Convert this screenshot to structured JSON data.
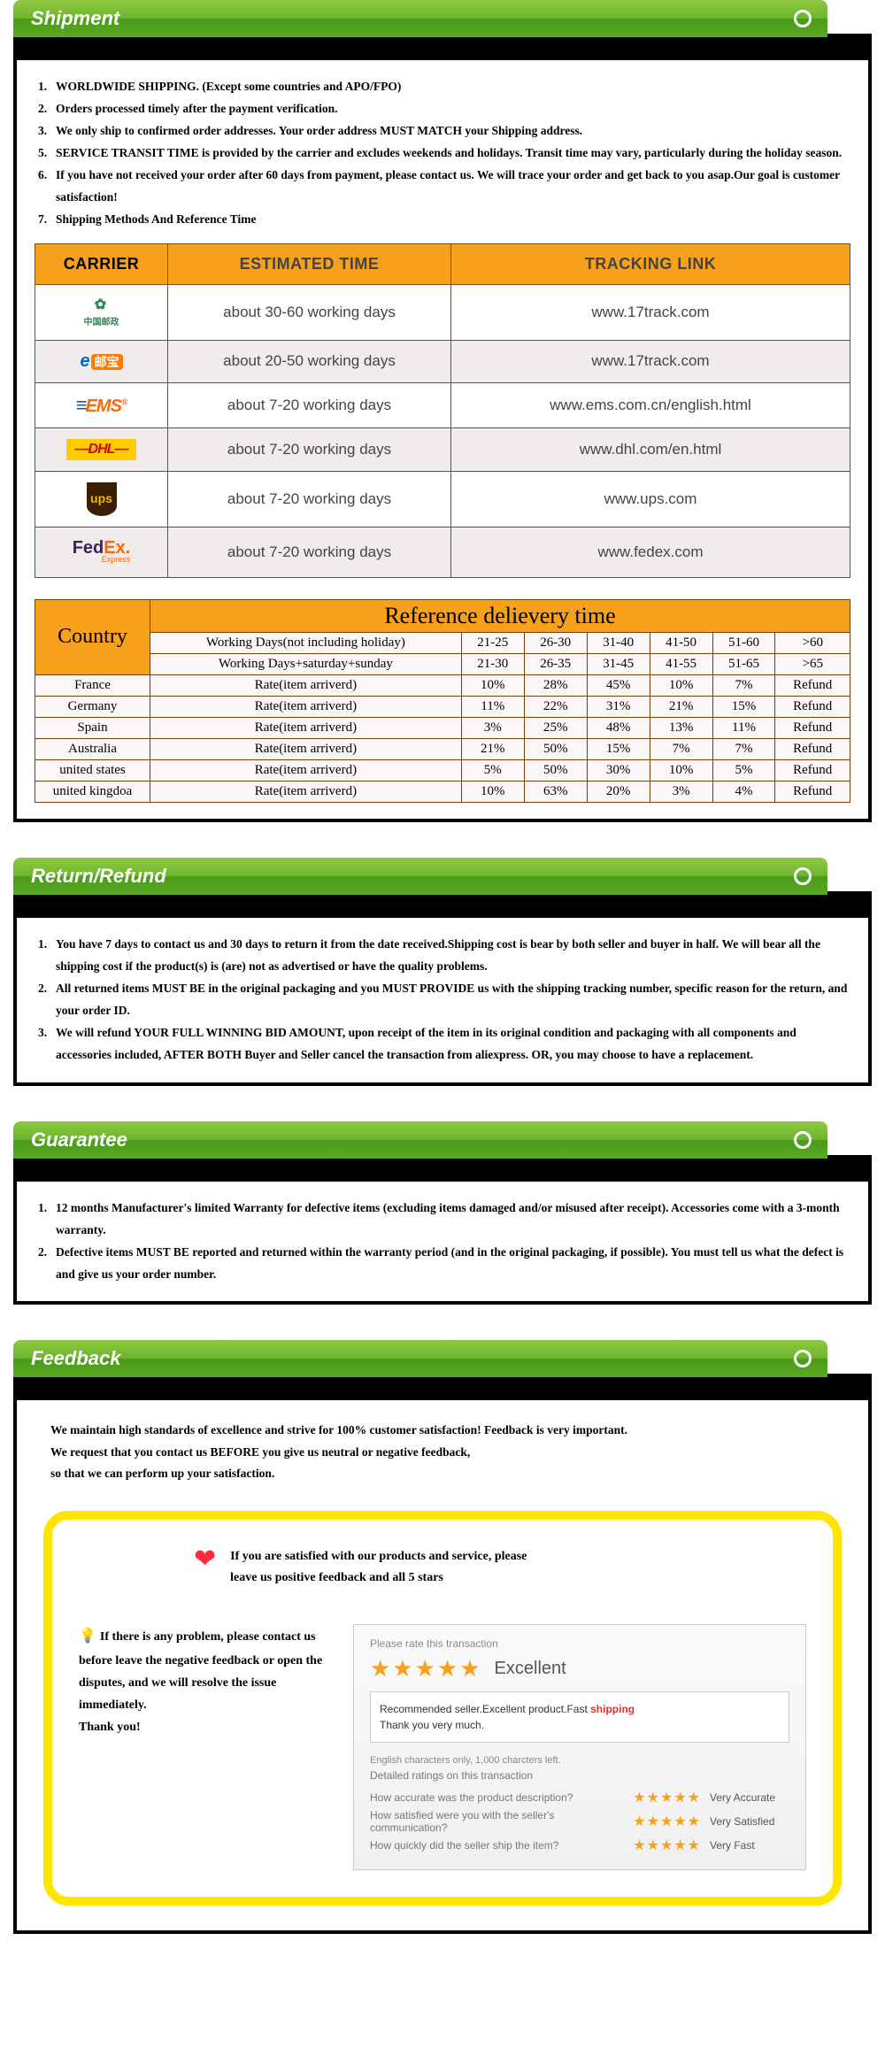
{
  "colors": {
    "headerGradientTop": "#8fc843",
    "headerGradientBottom": "#4a9b1a",
    "orangeHeader": "#f7a01b",
    "tableBorder": "#704010",
    "yellowBorder": "#ffe600",
    "starColor": "#f7a01b",
    "heartColor": "#ff2a3c"
  },
  "shipment": {
    "title": "Shipment",
    "items": [
      {
        "num": "1.",
        "text": "WORLDWIDE SHIPPING. (Except some countries and APO/FPO)"
      },
      {
        "num": "2.",
        "text": "Orders processed timely after the payment verification."
      },
      {
        "num": "3.",
        "text": "We only ship to confirmed order addresses. Your order address MUST MATCH your Shipping address."
      },
      {
        "num": "5.",
        "text": "SERVICE TRANSIT TIME is provided by the carrier and excludes weekends and holidays. Transit time may vary, particularly during the holiday season."
      },
      {
        "num": "6.",
        "text": "If you have not received your order after 60 days from payment, please contact us. We will trace your order and get back to you asap.Our goal is customer satisfaction!"
      },
      {
        "num": "7.",
        "text": "Shipping Methods And Reference Time"
      }
    ],
    "carrierTable": {
      "headers": {
        "carrier": "CARRIER",
        "time": "ESTIMATED TIME",
        "link": "TRACKING LINK"
      },
      "rows": [
        {
          "logo": "chinapost",
          "time": "about 30-60 working days",
          "link": "www.17track.com"
        },
        {
          "logo": "eyoubao",
          "time": "about 20-50 working days",
          "link": "www.17track.com"
        },
        {
          "logo": "ems",
          "time": "about 7-20 working days",
          "link": "www.ems.com.cn/english.html"
        },
        {
          "logo": "dhl",
          "time": "about 7-20 working days",
          "link": "www.dhl.com/en.html"
        },
        {
          "logo": "ups",
          "time": "about 7-20 working days",
          "link": "www.ups.com"
        },
        {
          "logo": "fedex",
          "time": "about 7-20 working days",
          "link": "www.fedex.com"
        }
      ]
    },
    "delivTable": {
      "countryHeader": "Country",
      "title": "Reference delievery time",
      "wd1": "Working Days(not including holiday)",
      "wd2": "Working Days+saturday+sunday",
      "ranges1": [
        "21-25",
        "26-30",
        "31-40",
        "41-50",
        "51-60",
        ">60"
      ],
      "ranges2": [
        "21-30",
        "26-35",
        "31-45",
        "41-55",
        "51-65",
        ">65"
      ],
      "rateLabel": "Rate(item arriverd)",
      "rows": [
        {
          "country": "France",
          "vals": [
            "10%",
            "28%",
            "45%",
            "10%",
            "7%",
            "Refund"
          ]
        },
        {
          "country": "Germany",
          "vals": [
            "11%",
            "22%",
            "31%",
            "21%",
            "15%",
            "Refund"
          ]
        },
        {
          "country": "Spain",
          "vals": [
            "3%",
            "25%",
            "48%",
            "13%",
            "11%",
            "Refund"
          ]
        },
        {
          "country": "Australia",
          "vals": [
            "21%",
            "50%",
            "15%",
            "7%",
            "7%",
            "Refund"
          ]
        },
        {
          "country": "united states",
          "vals": [
            "5%",
            "50%",
            "30%",
            "10%",
            "5%",
            "Refund"
          ]
        },
        {
          "country": "united kingdoa",
          "vals": [
            "10%",
            "63%",
            "20%",
            "3%",
            "4%",
            "Refund"
          ]
        }
      ]
    }
  },
  "returnRefund": {
    "title": "Return/Refund",
    "items": [
      {
        "num": "1.",
        "text": "You have 7 days to contact us and 30 days to return it from the date received.Shipping cost is bear by both seller and buyer in half. We will bear all the shipping cost if the product(s) is (are) not as advertised or have the quality problems."
      },
      {
        "num": "2.",
        "text": "All returned items MUST BE in the original packaging and you MUST PROVIDE us with the shipping tracking number, specific reason for the return, and your order ID."
      },
      {
        "num": "3.",
        "text": "We will refund YOUR FULL WINNING BID AMOUNT, upon receipt of the item in its original condition and packaging with all components and accessories included, AFTER BOTH Buyer and Seller cancel the transaction from aliexpress. OR, you may choose to have a replacement."
      }
    ]
  },
  "guarantee": {
    "title": "Guarantee",
    "items": [
      {
        "num": "1.",
        "text": "12 months Manufacturer's limited Warranty for defective items (excluding items damaged and/or misused after receipt). Accessories come with a 3-month warranty."
      },
      {
        "num": "2.",
        "text": "Defective items MUST BE reported and returned within the warranty period (and in the original packaging, if possible). You must tell us what the defect is and give us your order number."
      }
    ]
  },
  "feedback": {
    "title": "Feedback",
    "intro1": "We maintain high standards of excellence and strive for 100% customer satisfaction! Feedback is very important.",
    "intro2": "We request that you contact us BEFORE you give us neutral or negative feedback,",
    "intro3": "so that we can perform up your satisfaction.",
    "topText1": "If you are satisfied with our products and service, please",
    "topText2": "leave us positive feedback and all 5 stars",
    "leftText": "If there is any problem, please contact us before leave the negative feedback or open the disputes, and we will resolve the issue immediately.",
    "leftThank": "Thank you!",
    "card": {
      "prompt": "Please rate this transaction",
      "excellent": "Excellent",
      "comment1": "Recommended seller.Excellent product.Fast ",
      "commentShip": "shipping",
      "comment2": "Thank you very much.",
      "charNote": "English characters only, 1,000 charcters left.",
      "dsrHead": "Detailed ratings on this transaction",
      "q1": "How accurate was the product description?",
      "q2": "How satisfied were you with the seller's communication?",
      "q3": "How quickly did the seller ship the item?",
      "l1": "Very Accurate",
      "l2": "Very Satisfied",
      "l3": "Very Fast",
      "stars": "★★★★★"
    }
  }
}
